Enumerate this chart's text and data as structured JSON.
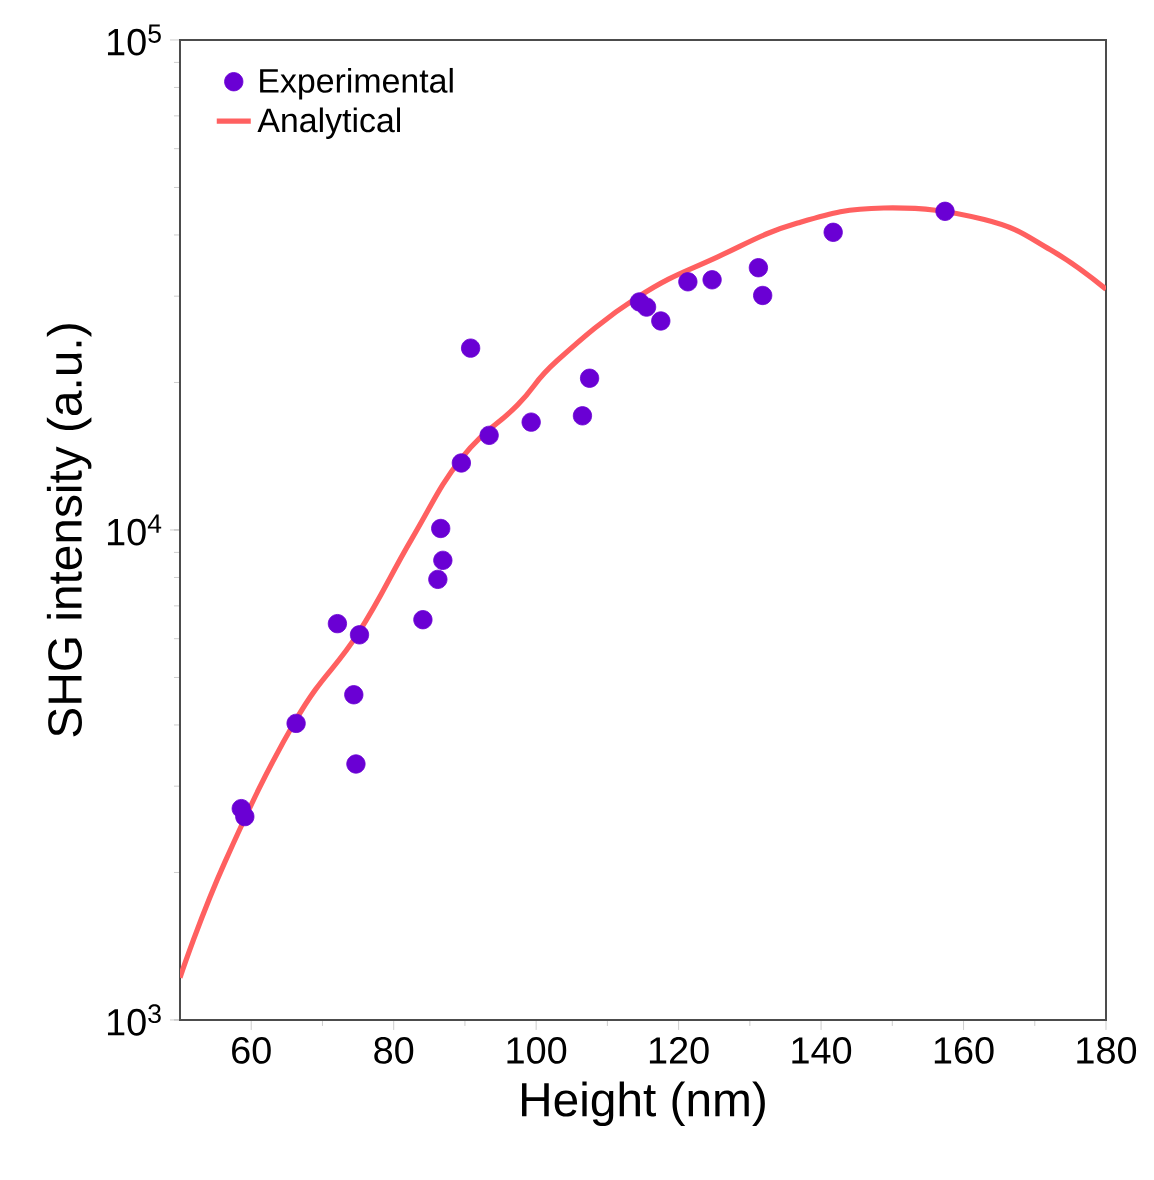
{
  "chart_data": {
    "type": "scatter",
    "xlabel": "Height (nm)",
    "ylabel": "SHG intensity (a.u.)",
    "log": "y",
    "xlim": [
      50,
      180
    ],
    "xticks": [
      60,
      80,
      100,
      120,
      140,
      160,
      180
    ],
    "ylim": [
      1000,
      100000
    ],
    "yticks": [
      {
        "value": 1000,
        "label": "10$^{3}$"
      },
      {
        "value": 10000,
        "label": "10$^{4}$"
      },
      {
        "value": 100000,
        "label": "10$^{5}$"
      }
    ],
    "grid": false,
    "legend": "top left",
    "series": [
      {
        "name": "Experimental",
        "marker": "circle",
        "color": "#6a00d4",
        "x": [
          58.6,
          59.1,
          66.3,
          72.1,
          75.2,
          74.4,
          74.7,
          84.1,
          86.2,
          86.9,
          86.6,
          89.5,
          90.8,
          93.4,
          99.3,
          106.5,
          107.5,
          114.5,
          115.5,
          117.5,
          121.3,
          124.7,
          131.2,
          131.8,
          141.7,
          157.4
        ],
        "values": [
          2700,
          2600,
          4030,
          6440,
          6110,
          4610,
          3330,
          6560,
          7930,
          8670,
          10070,
          13700,
          23500,
          15600,
          16600,
          17100,
          20400,
          29200,
          28500,
          26700,
          32100,
          32400,
          34300,
          30100,
          40500,
          44700
        ]
      },
      {
        "name": "Analytical",
        "type": "line",
        "marker": "none",
        "line_style": "solid",
        "color": "#ff6060",
        "x": [
          50,
          56.3,
          66.2,
          75,
          82.5,
          89.5,
          97.4,
          103,
          114.3,
          125.5,
          136.7,
          148.8,
          162.9,
          172.2,
          180
        ],
        "values": [
          1220,
          2100,
          4080,
          6150,
          9570,
          14000,
          18000,
          22200,
          29900,
          36100,
          42300,
          45400,
          43000,
          37300,
          31000
        ]
      }
    ]
  }
}
